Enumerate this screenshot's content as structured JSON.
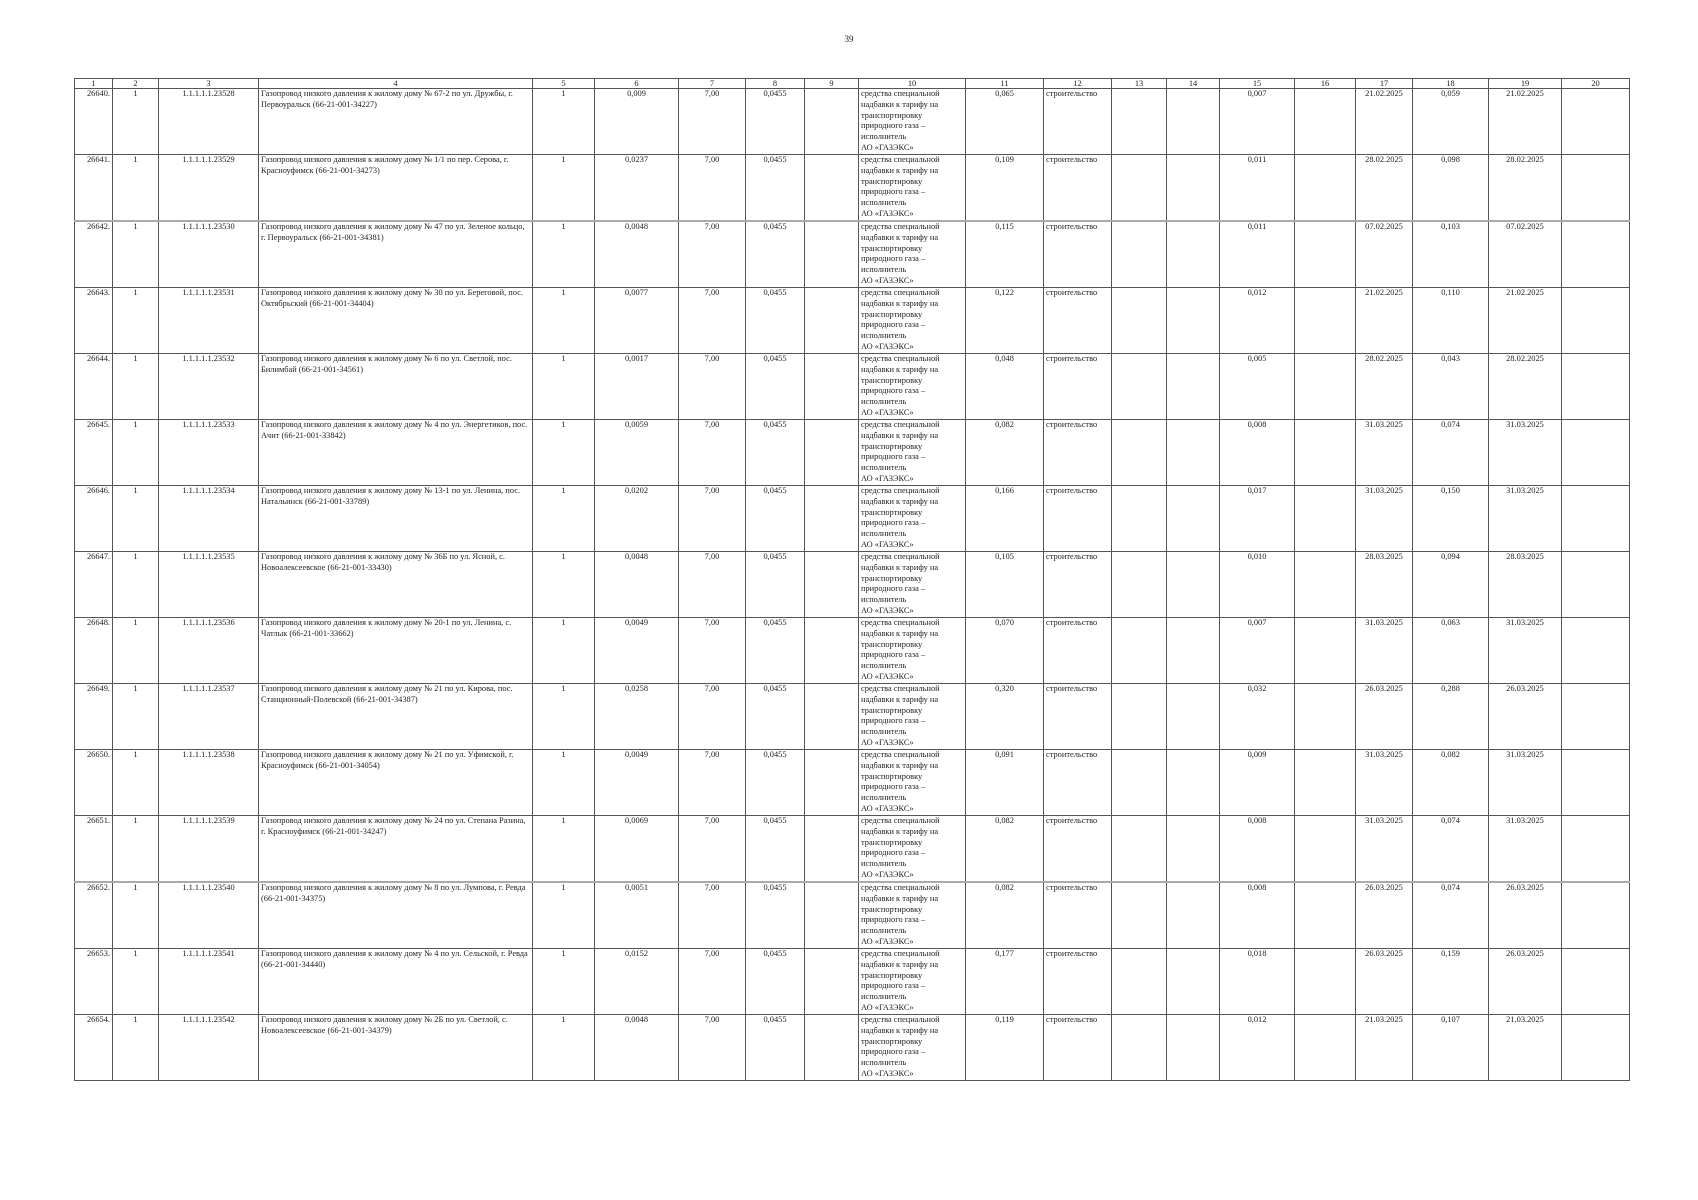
{
  "page_number": "39",
  "table": {
    "headers": [
      "1",
      "2",
      "3",
      "4",
      "5",
      "6",
      "7",
      "8",
      "9",
      "10",
      "11",
      "12",
      "13",
      "14",
      "15",
      "16",
      "17",
      "18",
      "19",
      "20"
    ],
    "funding_source": "средства специальной\nнадбавки к тарифу на\nтранспортировку\nприродного газа –\nисполнитель\nАО «ГАЗЭКС»",
    "rows": [
      [
        "26640.",
        "1",
        "1.1.1.1.1.23528",
        "Газопровод низкого давления к жилому дому № 67-2 по ул. Дружбы, г. Первоуральск (66-21-001-34227)",
        "1",
        "0,009",
        "7,00",
        "0,0455",
        "",
        "FS",
        "0,065",
        "строительство",
        "",
        "",
        "0,007",
        "",
        "21.02.2025",
        "0,059",
        "21.02.2025",
        ""
      ],
      [
        "26641.",
        "1",
        "1.1.1.1.1.23529",
        "Газопровод низкого давления к жилому дому № 1/1 по пер. Серова, г. Красноуфимск (66-21-001-34273)",
        "1",
        "0,0237",
        "7,00",
        "0,0455",
        "",
        "FS",
        "0,109",
        "строительство",
        "",
        "",
        "0,011",
        "",
        "28.02.2025",
        "0,098",
        "28.02.2025",
        ""
      ],
      [
        "26642.",
        "1",
        "1.1.1.1.1.23530",
        "Газопровод низкого давления к жилому дому № 47 по ул. Зеленое кольцо, г. Первоуральск (66-21-001-34381)",
        "1",
        "0,0048",
        "7,00",
        "0,0455",
        "",
        "FS",
        "0,115",
        "строительство",
        "",
        "",
        "0,011",
        "",
        "07.02.2025",
        "0,103",
        "07.02.2025",
        ""
      ],
      [
        "26643.",
        "1",
        "1.1.1.1.1.23531",
        "Газопровод низкого давления к жилому дому № 30 по ул. Береговой, пос. Октябрьский (66-21-001-34404)",
        "1",
        "0,0077",
        "7,00",
        "0,0455",
        "",
        "FS",
        "0,122",
        "строительство",
        "",
        "",
        "0,012",
        "",
        "21.02.2025",
        "0,110",
        "21.02.2025",
        ""
      ],
      [
        "26644.",
        "1",
        "1.1.1.1.1.23532",
        "Газопровод низкого давления к жилому дому № 6 по ул. Светлой, пос. Билимбай (66-21-001-34561)",
        "1",
        "0,0017",
        "7,00",
        "0,0455",
        "",
        "FS",
        "0,048",
        "строительство",
        "",
        "",
        "0,005",
        "",
        "28.02.2025",
        "0,043",
        "28.02.2025",
        ""
      ],
      [
        "26645.",
        "1",
        "1.1.1.1.1.23533",
        "Газопровод низкого давления к жилому дому № 4 по ул. Энергетиков, пос. Ачит (66-21-001-33842)",
        "1",
        "0,0059",
        "7,00",
        "0,0455",
        "",
        "FS",
        "0,082",
        "строительство",
        "",
        "",
        "0,008",
        "",
        "31.03.2025",
        "0,074",
        "31.03.2025",
        ""
      ],
      [
        "26646.",
        "1",
        "1.1.1.1.1.23534",
        "Газопровод низкого давления к жилому дому № 13-1 по ул. Ленина, пос. Натальинск (66-21-001-33789)",
        "1",
        "0,0202",
        "7,00",
        "0,0455",
        "",
        "FS",
        "0,166",
        "строительство",
        "",
        "",
        "0,017",
        "",
        "31.03.2025",
        "0,150",
        "31.03.2025",
        ""
      ],
      [
        "26647.",
        "1",
        "1.1.1.1.1.23535",
        "Газопровод низкого давления к жилому дому № 36Б по ул. Ясной, с. Новоалексеевское (66-21-001-33430)",
        "1",
        "0,0048",
        "7,00",
        "0,0455",
        "",
        "FS",
        "0,105",
        "строительство",
        "",
        "",
        "0,010",
        "",
        "28.03.2025",
        "0,094",
        "28.03.2025",
        ""
      ],
      [
        "26648.",
        "1",
        "1.1.1.1.1.23536",
        "Газопровод низкого давления к жилому дому № 20-1 по ул. Ленина, с. Чатлык (66-21-001-33662)",
        "1",
        "0,0049",
        "7,00",
        "0,0455",
        "",
        "FS",
        "0,070",
        "строительство",
        "",
        "",
        "0,007",
        "",
        "31.03.2025",
        "0,063",
        "31.03.2025",
        ""
      ],
      [
        "26649.",
        "1",
        "1.1.1.1.1.23537",
        "Газопровод низкого давления к жилому дому № 21 по ул. Кирова, пос. Станционный-Полевской (66-21-001-34387)",
        "1",
        "0,0258",
        "7,00",
        "0,0455",
        "",
        "FS",
        "0,320",
        "строительство",
        "",
        "",
        "0,032",
        "",
        "26.03.2025",
        "0,288",
        "26.03.2025",
        ""
      ],
      [
        "26650.",
        "1",
        "1.1.1.1.1.23538",
        "Газопровод низкого давления к жилому дому № 21 по ул. Уфимской, г. Красноуфимск (66-21-001-34054)",
        "1",
        "0,0049",
        "7,00",
        "0,0455",
        "",
        "FS",
        "0,091",
        "строительство",
        "",
        "",
        "0,009",
        "",
        "31.03.2025",
        "0,082",
        "31.03.2025",
        ""
      ],
      [
        "26651.",
        "1",
        "1.1.1.1.1.23539",
        "Газопровод низкого давления к жилому дому № 24 по ул. Степана Разина, г. Красноуфимск (66-21-001-34247)",
        "1",
        "0,0069",
        "7,00",
        "0,0455",
        "",
        "FS",
        "0,082",
        "строительство",
        "",
        "",
        "0,008",
        "",
        "31.03.2025",
        "0,074",
        "31.03.2025",
        ""
      ],
      [
        "26652.",
        "1",
        "1.1.1.1.1.23540",
        "Газопровод низкого давления к жилому дому № 8 по ул. Лумпова, г. Ревда (66-21-001-34375)",
        "1",
        "0,0051",
        "7,00",
        "0,0455",
        "",
        "FS",
        "0,082",
        "строительство",
        "",
        "",
        "0,008",
        "",
        "26.03.2025",
        "0,074",
        "26.03.2025",
        ""
      ],
      [
        "26653.",
        "1",
        "1.1.1.1.1.23541",
        "Газопровод низкого давления к жилому дому № 4 по ул. Сельской, г. Ревда (66-21-001-34440)",
        "1",
        "0,0152",
        "7,00",
        "0,0455",
        "",
        "FS",
        "0,177",
        "строительство",
        "",
        "",
        "0,018",
        "",
        "26.03.2025",
        "0,159",
        "26.03.2025",
        ""
      ],
      [
        "26654.",
        "1",
        "1.1.1.1.1.23542",
        "Газопровод низкого давления к жилому дому № 2Б по ул. Светлой, с. Новоалексеевское (66-21-001-34379)",
        "1",
        "0,0048",
        "7,00",
        "0,0455",
        "",
        "FS",
        "0,119",
        "строительство",
        "",
        "",
        "0,012",
        "",
        "21.03.2025",
        "0,107",
        "21.03.2025",
        ""
      ]
    ]
  }
}
